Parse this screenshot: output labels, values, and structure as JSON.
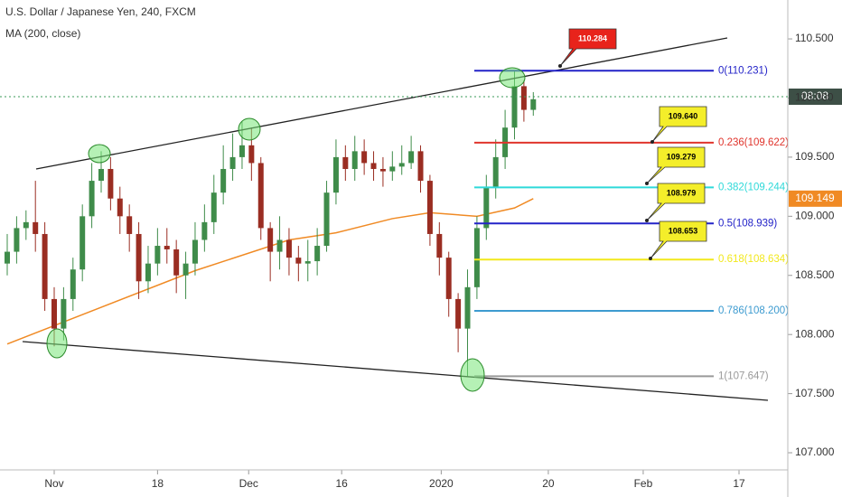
{
  "chart_data": {
    "type": "candlestick",
    "title": "U.S. Dollar / Japanese Yen, 240, FXCM",
    "subtitle": "MA (200, close)",
    "up_color": "#3f8c4a",
    "down_color": "#9a2d22",
    "x": [
      -5,
      -4,
      -3,
      -2,
      -1,
      0,
      1,
      2,
      3,
      4,
      5,
      6,
      7,
      8,
      9,
      10,
      11,
      12,
      13,
      14,
      15,
      16,
      17,
      18,
      19,
      20,
      21,
      22,
      23,
      24,
      25,
      26,
      27,
      28,
      29,
      30,
      31,
      32,
      33,
      34,
      35,
      36,
      37,
      38,
      39,
      40,
      41,
      42,
      43,
      44,
      45,
      46,
      47,
      48,
      49,
      50,
      51
    ],
    "open": [
      108.6,
      108.7,
      108.9,
      108.95,
      108.85,
      108.3,
      108.05,
      108.3,
      108.55,
      109.0,
      109.3,
      109.4,
      109.15,
      109.0,
      108.85,
      108.45,
      108.6,
      108.75,
      108.72,
      108.5,
      108.6,
      108.8,
      108.95,
      109.2,
      109.4,
      109.5,
      109.6,
      109.45,
      108.9,
      108.7,
      108.8,
      108.65,
      108.6,
      108.62,
      108.75,
      109.2,
      109.5,
      109.4,
      109.55,
      109.45,
      109.4,
      109.38,
      109.42,
      109.45,
      109.55,
      109.3,
      108.85,
      108.65,
      108.3,
      108.05,
      108.4,
      108.9,
      109.25,
      109.5,
      109.75,
      110.1,
      109.9
    ],
    "high": [
      108.85,
      109.0,
      109.05,
      109.3,
      108.95,
      108.4,
      108.4,
      108.65,
      109.1,
      109.45,
      109.55,
      109.5,
      109.25,
      109.1,
      108.95,
      108.75,
      108.9,
      108.9,
      108.8,
      108.7,
      108.95,
      109.1,
      109.35,
      109.6,
      109.7,
      109.8,
      109.75,
      109.5,
      108.95,
      109.0,
      108.9,
      108.75,
      108.8,
      108.9,
      109.3,
      109.65,
      109.6,
      109.68,
      109.65,
      109.55,
      109.5,
      109.55,
      109.6,
      109.68,
      109.6,
      109.35,
      108.95,
      108.7,
      108.35,
      108.55,
      109.0,
      109.35,
      109.65,
      109.9,
      110.231,
      110.15,
      110.05
    ],
    "low": [
      108.5,
      108.6,
      108.8,
      108.7,
      108.2,
      107.9,
      107.95,
      108.2,
      108.45,
      108.9,
      109.2,
      109.05,
      108.85,
      108.7,
      108.3,
      108.35,
      108.5,
      108.6,
      108.35,
      108.3,
      108.5,
      108.7,
      108.85,
      109.1,
      109.3,
      109.4,
      109.3,
      108.8,
      108.45,
      108.55,
      108.5,
      108.45,
      108.45,
      108.5,
      108.7,
      109.1,
      109.3,
      109.3,
      109.35,
      109.3,
      109.25,
      109.3,
      109.35,
      109.4,
      109.2,
      108.75,
      108.5,
      108.15,
      107.85,
      107.647,
      108.3,
      108.8,
      109.15,
      109.4,
      109.65,
      109.8,
      109.85
    ],
    "close": [
      108.7,
      108.9,
      108.95,
      108.85,
      108.3,
      108.05,
      108.3,
      108.55,
      109.0,
      109.3,
      109.4,
      109.15,
      109.0,
      108.85,
      108.45,
      108.6,
      108.75,
      108.72,
      108.5,
      108.6,
      108.8,
      108.95,
      109.2,
      109.4,
      109.5,
      109.6,
      109.45,
      108.9,
      108.7,
      108.8,
      108.65,
      108.6,
      108.62,
      108.75,
      109.2,
      109.5,
      109.4,
      109.55,
      109.45,
      109.4,
      109.38,
      109.42,
      109.45,
      109.55,
      109.3,
      108.85,
      108.65,
      108.3,
      108.05,
      108.4,
      108.9,
      109.25,
      109.5,
      109.75,
      110.1,
      109.9,
      109.99
    ],
    "ma": {
      "color": "#f08a24",
      "x": [
        -5,
        5,
        15,
        25,
        30,
        36,
        40,
        45,
        49,
        51
      ],
      "values": [
        107.92,
        108.23,
        108.54,
        108.8,
        108.86,
        108.98,
        109.03,
        109.0,
        109.07,
        109.149
      ]
    },
    "fib_levels": [
      {
        "label": "0(110.231)",
        "value": 110.231,
        "color": "#2323c8"
      },
      {
        "label": "0.236(109.622)",
        "value": 109.622,
        "color": "#e0342c"
      },
      {
        "label": "0.382(109.244)",
        "value": 109.244,
        "color": "#2fd9d9"
      },
      {
        "label": "0.5(108.939)",
        "value": 108.939,
        "color": "#2323c8"
      },
      {
        "label": "0.618(108.634)",
        "value": 108.634,
        "color": "#f2e81c"
      },
      {
        "label": "0.786(108.200)",
        "value": 108.2,
        "color": "#3d9bd0"
      },
      {
        "label": "1(107.647)",
        "value": 107.647,
        "color": "#999999"
      }
    ],
    "callouts": [
      "110.284",
      "109.640",
      "109.279",
      "108.979",
      "108.653"
    ],
    "countdown": "08:08",
    "xlim": [
      -5.77,
      77.9
    ],
    "xticks": [
      {
        "value": 0,
        "label": "Nov"
      },
      {
        "value": 11,
        "label": "18"
      },
      {
        "value": 20.7,
        "label": "Dec"
      },
      {
        "value": 30.6,
        "label": "16"
      },
      {
        "value": 41.2,
        "label": "2020"
      },
      {
        "value": 52.6,
        "label": "20"
      },
      {
        "value": 62.7,
        "label": "Feb"
      },
      {
        "value": 72.9,
        "label": "17"
      }
    ],
    "ylim": [
      106.855,
      110.829
    ],
    "yticks": [
      {
        "value": 110.5,
        "label": "110.500"
      },
      {
        "value": 110,
        "label": "110.000"
      },
      {
        "value": 109.5,
        "label": "109.500"
      },
      {
        "value": 109,
        "label": "109.000"
      },
      {
        "value": 108.5,
        "label": "108.500"
      },
      {
        "value": 108,
        "label": "108.000"
      },
      {
        "value": 107.5,
        "label": "107.500"
      },
      {
        "value": 107,
        "label": "107.000"
      }
    ]
  }
}
